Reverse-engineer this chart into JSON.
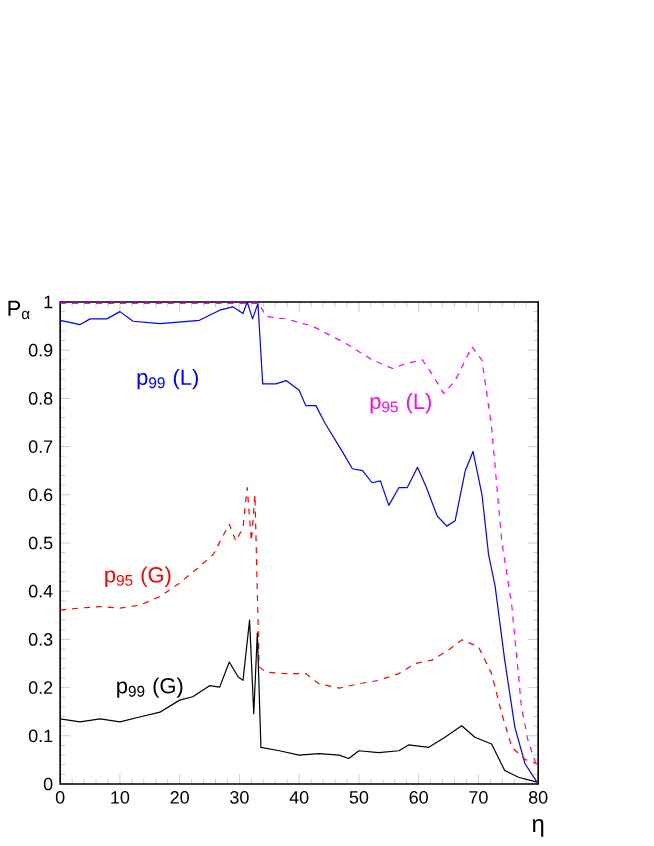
{
  "chart_data": {
    "type": "line",
    "xlabel": "η",
    "ylabel": "P$_{α}$",
    "xlim": [
      0,
      80
    ],
    "xticks": [
      0,
      10,
      20,
      30,
      40,
      50,
      60,
      70,
      80
    ],
    "ylim": [
      0,
      1
    ],
    "yticks": [
      0,
      0.1,
      0.2,
      0.3,
      0.4,
      0.5,
      0.6,
      0.7,
      0.8,
      0.9,
      1
    ],
    "marker": "none",
    "series": [
      {
        "name": "p$_{99}$ (L)",
        "color": "#0000ff",
        "line_style": "solid",
        "x": [
          0,
          3.3,
          5,
          7.8,
          10,
          12.2,
          16.7,
          23.3,
          26.7,
          28.9,
          30.6,
          31.3,
          32.2,
          33.1,
          33.9,
          36.1,
          37.8,
          40,
          41.1,
          42.8,
          44.4,
          47.2,
          48.9,
          50.6,
          52.2,
          53.6,
          55,
          56.7,
          58.1,
          59.8,
          61.3,
          63.1,
          64.7,
          66.1,
          67.8,
          69.1,
          70.6,
          71.7,
          72.8,
          74.4,
          76.1,
          77.8,
          79.8
        ],
        "values": [
          0.962,
          0.953,
          0.965,
          0.965,
          0.98,
          0.96,
          0.955,
          0.962,
          0.983,
          0.99,
          0.976,
          1.0,
          0.965,
          0.997,
          0.83,
          0.83,
          0.837,
          0.817,
          0.785,
          0.785,
          0.747,
          0.69,
          0.654,
          0.65,
          0.625,
          0.629,
          0.578,
          0.615,
          0.615,
          0.657,
          0.615,
          0.556,
          0.535,
          0.546,
          0.65,
          0.69,
          0.6,
          0.476,
          0.41,
          0.257,
          0.118,
          0.042,
          0.004
        ]
      },
      {
        "name": "p$_{95}$ (L)",
        "color": "#ff00ff",
        "line_style": "dashed",
        "x": [
          0,
          10,
          20,
          30,
          33.3,
          34.4,
          37.8,
          42.2,
          47.8,
          52.2,
          55.6,
          57.8,
          60.6,
          62.2,
          64.2,
          66.1,
          68.9,
          70.6,
          72.2,
          73.9,
          75.6,
          77.2,
          78.3,
          79.8
        ],
        "values": [
          0.997,
          0.997,
          0.997,
          0.997,
          0.997,
          0.97,
          0.965,
          0.95,
          0.914,
          0.88,
          0.862,
          0.872,
          0.88,
          0.851,
          0.81,
          0.837,
          0.907,
          0.879,
          0.74,
          0.504,
          0.368,
          0.16,
          0.09,
          0.035
        ]
      },
      {
        "name": "p$_{95}$ (G)",
        "color": "#ff0000",
        "line_style": "dashed",
        "x": [
          0,
          3.3,
          6.7,
          10,
          13.3,
          16.7,
          20,
          23.3,
          25.6,
          28.3,
          29.4,
          30.6,
          31.3,
          32,
          32.6,
          33.3,
          34.4,
          37.8,
          41.1,
          43.3,
          46.7,
          50,
          53.3,
          56.7,
          59.4,
          62.2,
          65,
          67.2,
          70,
          72.2,
          73.9,
          75.6,
          77.8,
          79.8
        ],
        "values": [
          0.361,
          0.365,
          0.368,
          0.365,
          0.371,
          0.389,
          0.417,
          0.451,
          0.476,
          0.539,
          0.504,
          0.532,
          0.615,
          0.504,
          0.6,
          0.243,
          0.232,
          0.229,
          0.229,
          0.208,
          0.199,
          0.208,
          0.215,
          0.229,
          0.25,
          0.257,
          0.278,
          0.299,
          0.285,
          0.229,
          0.146,
          0.076,
          0.051,
          0.042
        ]
      },
      {
        "name": "p$_{99}$ (G)",
        "color": "#000000",
        "line_style": "solid",
        "x": [
          0,
          3.3,
          6.7,
          10,
          13.3,
          16.7,
          20,
          22.2,
          25,
          26.7,
          28.3,
          29.8,
          30.6,
          31.7,
          32.4,
          33,
          33.6,
          36.7,
          40,
          43.3,
          46.7,
          48.3,
          50,
          53.3,
          56.7,
          58.3,
          61.7,
          64.4,
          67.2,
          69.4,
          72.2,
          74.4,
          76.7,
          79.8
        ],
        "values": [
          0.135,
          0.129,
          0.135,
          0.129,
          0.139,
          0.149,
          0.174,
          0.181,
          0.204,
          0.201,
          0.253,
          0.222,
          0.215,
          0.34,
          0.146,
          0.313,
          0.076,
          0.069,
          0.06,
          0.063,
          0.06,
          0.053,
          0.069,
          0.065,
          0.069,
          0.081,
          0.076,
          0.097,
          0.121,
          0.097,
          0.083,
          0.028,
          0.014,
          0.004
        ]
      }
    ]
  }
}
